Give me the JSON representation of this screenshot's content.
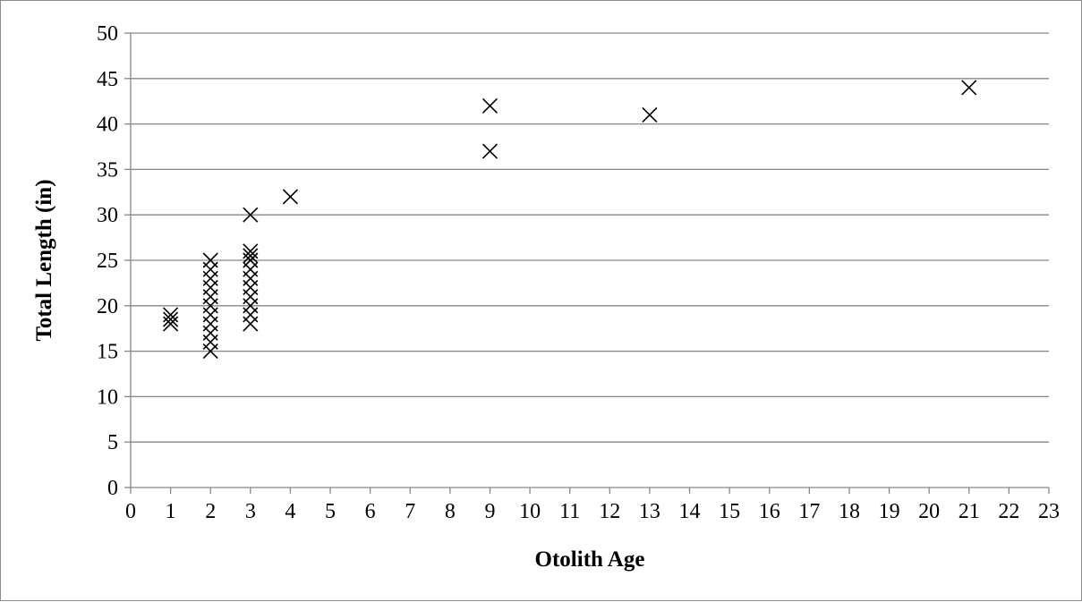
{
  "chart_data": {
    "type": "scatter",
    "title": "",
    "xlabel": "Otolith Age",
    "ylabel": "Total Length (in)",
    "xlim": [
      0,
      23
    ],
    "ylim": [
      0,
      50
    ],
    "x_ticks": [
      0,
      1,
      2,
      3,
      4,
      5,
      6,
      7,
      8,
      9,
      10,
      11,
      12,
      13,
      14,
      15,
      16,
      17,
      18,
      19,
      20,
      21,
      22,
      23
    ],
    "y_ticks": [
      0,
      5,
      10,
      15,
      20,
      25,
      30,
      35,
      40,
      45,
      50
    ],
    "grid": "horizontal",
    "legend": "none",
    "marker": "x",
    "marker_color": "#000000",
    "series": [
      {
        "x": [
          1,
          1,
          1,
          2,
          2,
          2,
          2,
          2,
          2,
          2,
          2,
          2,
          2,
          2,
          3,
          3,
          3,
          3,
          3,
          3,
          3,
          3,
          3,
          3,
          3,
          4,
          9,
          9,
          13,
          21
        ],
        "y": [
          18,
          18.5,
          19,
          15,
          16,
          17,
          18,
          19,
          20,
          21,
          22,
          23,
          24,
          25,
          18,
          19,
          20,
          21,
          22,
          23,
          24,
          25,
          25.5,
          26,
          30,
          32,
          37,
          42,
          41,
          44
        ]
      }
    ]
  }
}
